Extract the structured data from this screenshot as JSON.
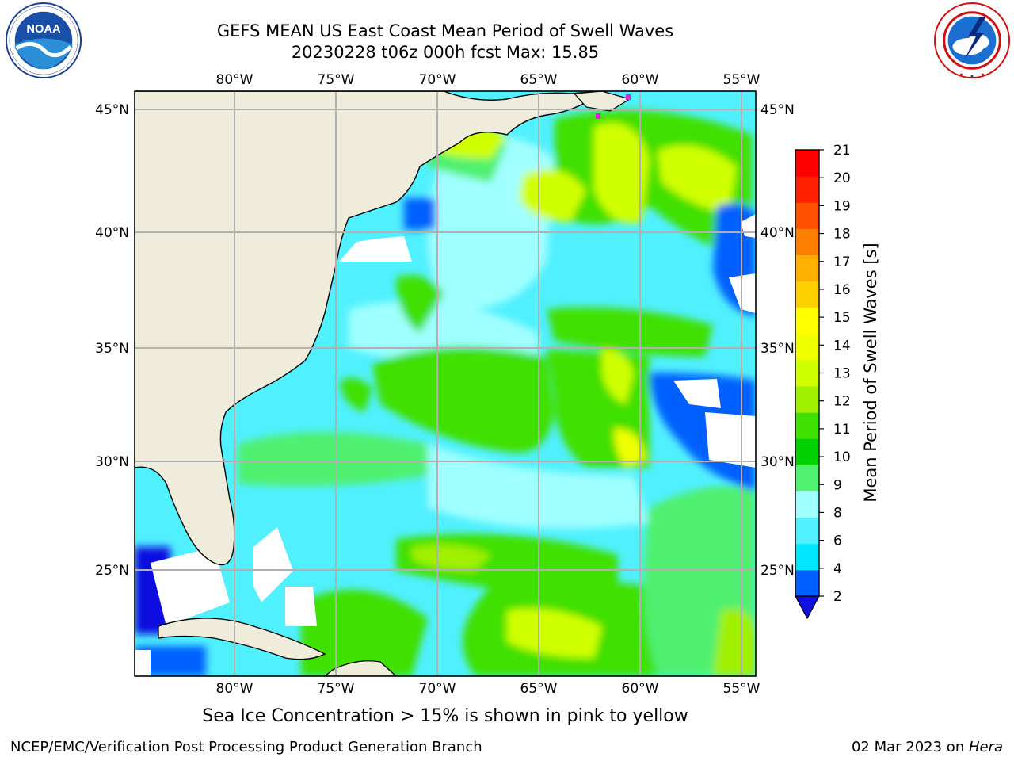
{
  "header": {
    "title_line1": "GEFS MEAN US East Coast Mean Period of Swell Waves",
    "title_line2": "20230228 t06z 000h fcst   Max: 15.85"
  },
  "logos": {
    "left": {
      "name": "NOAA",
      "text": "NOAA",
      "ring_text": "NATIONAL OCEANIC AND ATMOSPHERIC ADMINISTRATION · U.S. DEPARTMENT OF COMMERCE"
    },
    "right": {
      "name": "National Weather Service",
      "ring_text": "NATIONAL WEATHER SERVICE"
    }
  },
  "map": {
    "lon_labels": [
      "80°W",
      "75°W",
      "70°W",
      "65°W",
      "60°W",
      "55°W"
    ],
    "lat_labels": [
      "45°N",
      "40°N",
      "35°N",
      "30°N",
      "25°N"
    ],
    "colors": {
      "land": "#efecdc",
      "grid": "#b0b0b0",
      "coast": "#000000",
      "ice": "#e020e0"
    }
  },
  "colorbar": {
    "label": "Mean Period of Swell Waves [s]",
    "ticks": [
      "2",
      "4",
      "6",
      "8",
      "9",
      "10",
      "11",
      "12",
      "13",
      "14",
      "15",
      "16",
      "17",
      "18",
      "19",
      "20",
      "21"
    ],
    "colors": [
      "#0060ff",
      "#00e6ff",
      "#50f0ff",
      "#a0ffff",
      "#50f070",
      "#00d000",
      "#40e000",
      "#a0f000",
      "#d0ff00",
      "#f0ff00",
      "#ffff00",
      "#ffd000",
      "#ffb000",
      "#ff8000",
      "#ff5000",
      "#ff2000",
      "#ff0000"
    ],
    "extend_color": "#1010e0"
  },
  "footer": {
    "note": "Sea Ice Concentration > 15% is shown in pink to yellow",
    "credit": "NCEP/EMC/Verification Post Processing Product Generation Branch",
    "date": "02 Mar 2023 on ",
    "machine": "Hera"
  }
}
